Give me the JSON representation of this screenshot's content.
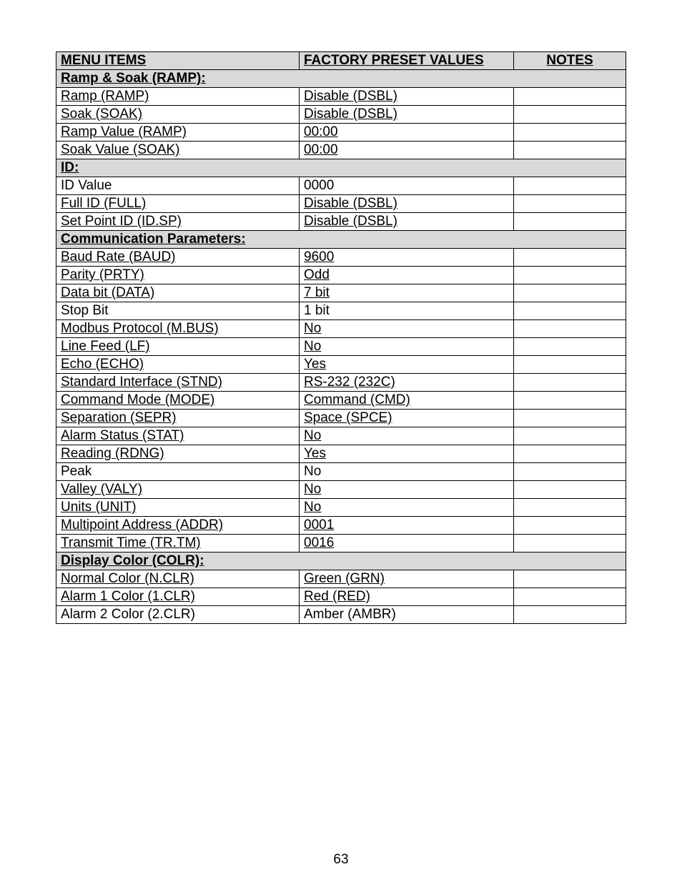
{
  "page_number": "63",
  "headers": {
    "menu": "MENU ITEMS",
    "value": "FACTORY PRESET VALUES",
    "notes": "NOTES"
  },
  "sections": [
    {
      "title": "Ramp & Soak (RAMP):",
      "rows": [
        {
          "menu": "Ramp (RAMP)",
          "value": "Disable (DSBL)",
          "underline": true
        },
        {
          "menu": "Soak (SOAK)",
          "value": "Disable (DSBL)",
          "underline": true
        },
        {
          "menu": "Ramp Value (RAMP)",
          "value": "00:00",
          "underline": true
        },
        {
          "menu": "Soak Value (SOAK)",
          "value": "00:00",
          "underline": true
        }
      ]
    },
    {
      "title": "ID:",
      "rows": [
        {
          "menu": "ID Value",
          "value": "0000",
          "underline": false
        },
        {
          "menu": "Full ID (FULL)",
          "value": "Disable (DSBL)",
          "underline": true
        },
        {
          "menu": "Set Point ID (ID.SP)",
          "value": "Disable (DSBL)",
          "underline": true
        }
      ]
    },
    {
      "title": "Communication Parameters:",
      "rows": [
        {
          "menu": "Baud Rate (BAUD)",
          "value": "9600",
          "underline": true
        },
        {
          "menu": "Parity (PRTY)",
          "value": "Odd",
          "underline": true
        },
        {
          "menu": "Data bit (DATA)",
          "value": "7 bit",
          "underline": true
        },
        {
          "menu": "Stop Bit",
          "value": "1 bit",
          "underline": false
        },
        {
          "menu": "Modbus Protocol (M.BUS)",
          "value": "No",
          "underline": true
        },
        {
          "menu": "Line Feed (LF)",
          "value": "No",
          "underline": true
        },
        {
          "menu": "Echo (ECHO)",
          "value": "Yes",
          "underline": true
        },
        {
          "menu": "Standard Interface (STND)",
          "value": "RS-232 (232C)",
          "underline": true
        },
        {
          "menu": "Command Mode (MODE)",
          "value": "Command (CMD)",
          "underline": true
        },
        {
          "menu": "Separation (SEPR)",
          "value": "Space (SPCE)",
          "underline": true
        },
        {
          "menu": "Alarm Status (STAT)",
          "value": "No",
          "underline": true
        },
        {
          "menu": "Reading (RDNG)",
          "value": "Yes",
          "underline": true
        },
        {
          "menu": "Peak",
          "value": "No",
          "underline": false
        },
        {
          "menu": "Valley (VALY)",
          "value": "No",
          "underline": true
        },
        {
          "menu": "Units (UNIT)",
          "value": "No",
          "underline": true
        },
        {
          "menu": "Multipoint Address (ADDR)",
          "value": "0001",
          "underline": true
        },
        {
          "menu": "Transmit Time (TR.TM)",
          "value": "0016",
          "underline": true
        }
      ]
    },
    {
      "title": "Display Color (COLR):",
      "rows": [
        {
          "menu": "Normal Color (N.CLR)",
          "value": "Green (GRN)",
          "underline": true
        },
        {
          "menu": "Alarm 1 Color (1.CLR)",
          "value": "Red (RED)",
          "underline": true
        },
        {
          "menu": "Alarm 2 Color (2.CLR)",
          "value": "Amber (AMBR)",
          "underline": false
        }
      ]
    }
  ]
}
